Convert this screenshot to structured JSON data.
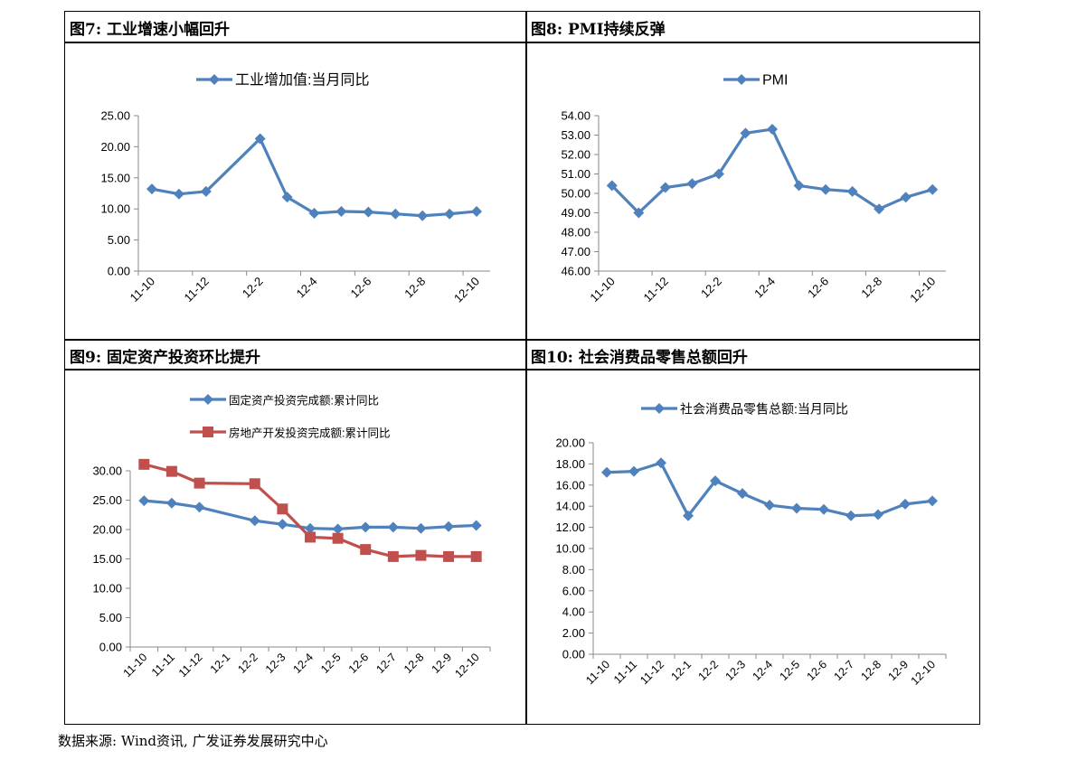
{
  "panels": [
    {
      "title": "图7:  工业增速小幅回升"
    },
    {
      "title": "图8:  PMI持续反弹"
    },
    {
      "title": "图9:  固定资产投资环比提升"
    },
    {
      "title": "图10:  社会消费品零售总额回升"
    }
  ],
  "source": "数据来源:  Wind资讯,  广发证券发展研究中心",
  "chart_data": [
    {
      "type": "line",
      "categories": [
        "11-10",
        "11-11",
        "11-12",
        "12-1",
        "12-2",
        "12-3",
        "12-4",
        "12-5",
        "12-6",
        "12-7",
        "12-8",
        "12-9",
        "12-10"
      ],
      "tick_labels": [
        "11-10",
        "11-12",
        "12-2",
        "12-4",
        "12-6",
        "12-8",
        "12-10"
      ],
      "series": [
        {
          "name": "工业增加值:当月同比",
          "color": "#4f81bd",
          "marker": "diamond",
          "values": [
            13.2,
            12.4,
            12.8,
            null,
            21.3,
            11.9,
            9.3,
            9.6,
            9.5,
            9.2,
            8.9,
            9.2,
            9.6
          ]
        }
      ],
      "ylim": [
        0,
        25
      ],
      "yticks": [
        "0.00",
        "5.00",
        "10.00",
        "15.00",
        "20.00",
        "25.00"
      ],
      "legend_position": "top"
    },
    {
      "type": "line",
      "categories": [
        "11-10",
        "11-11",
        "11-12",
        "12-1",
        "12-2",
        "12-3",
        "12-4",
        "12-5",
        "12-6",
        "12-7",
        "12-8",
        "12-9",
        "12-10"
      ],
      "tick_labels": [
        "11-10",
        "11-12",
        "12-2",
        "12-4",
        "12-6",
        "12-8",
        "12-10"
      ],
      "series": [
        {
          "name": "PMI",
          "color": "#4f81bd",
          "marker": "diamond",
          "values": [
            50.4,
            49.0,
            50.3,
            50.5,
            51.0,
            53.1,
            53.3,
            50.4,
            50.2,
            50.1,
            49.2,
            49.8,
            50.2
          ]
        }
      ],
      "ylim": [
        46,
        54
      ],
      "yticks": [
        "46.00",
        "47.00",
        "48.00",
        "49.00",
        "50.00",
        "51.00",
        "52.00",
        "53.00",
        "54.00"
      ],
      "legend_position": "top"
    },
    {
      "type": "line",
      "categories": [
        "11-10",
        "11-11",
        "11-12",
        "12-1",
        "12-2",
        "12-3",
        "12-4",
        "12-5",
        "12-6",
        "12-7",
        "12-8",
        "12-9",
        "12-10"
      ],
      "tick_labels": [
        "11-10",
        "11-11",
        "11-12",
        "12-1",
        "12-2",
        "12-3",
        "12-4",
        "12-5",
        "12-6",
        "12-7",
        "12-8",
        "12-9",
        "12-10"
      ],
      "series": [
        {
          "name": "固定资产投资完成额:累计同比",
          "color": "#4f81bd",
          "marker": "diamond",
          "values": [
            24.9,
            24.5,
            23.8,
            null,
            21.5,
            20.9,
            20.2,
            20.1,
            20.4,
            20.4,
            20.2,
            20.5,
            20.7
          ]
        },
        {
          "name": "房地产开发投资完成额:累计同比",
          "color": "#c0504d",
          "marker": "square",
          "values": [
            31.1,
            29.9,
            27.9,
            null,
            27.8,
            23.5,
            18.7,
            18.5,
            16.6,
            15.4,
            15.6,
            15.4,
            15.4
          ]
        }
      ],
      "ylim": [
        0,
        30
      ],
      "yticks": [
        "0.00",
        "5.00",
        "10.00",
        "15.00",
        "20.00",
        "25.00",
        "30.00"
      ],
      "legend_position": "top"
    },
    {
      "type": "line",
      "categories": [
        "11-10",
        "11-11",
        "11-12",
        "12-1",
        "12-2",
        "12-3",
        "12-4",
        "12-5",
        "12-6",
        "12-7",
        "12-8",
        "12-9",
        "12-10"
      ],
      "tick_labels": [
        "11-10",
        "11-11",
        "11-12",
        "12-1",
        "12-2",
        "12-3",
        "12-4",
        "12-5",
        "12-6",
        "12-7",
        "12-8",
        "12-9",
        "12-10"
      ],
      "series": [
        {
          "name": "社会消费品零售总额:当月同比",
          "color": "#4f81bd",
          "marker": "diamond",
          "values": [
            17.2,
            17.3,
            18.1,
            13.1,
            16.4,
            15.2,
            14.1,
            13.8,
            13.7,
            13.1,
            13.2,
            14.2,
            14.5
          ]
        }
      ],
      "ylim": [
        0,
        20
      ],
      "yticks": [
        "0.00",
        "2.00",
        "4.00",
        "6.00",
        "8.00",
        "10.00",
        "12.00",
        "14.00",
        "16.00",
        "18.00",
        "20.00"
      ],
      "legend_position": "top"
    }
  ]
}
